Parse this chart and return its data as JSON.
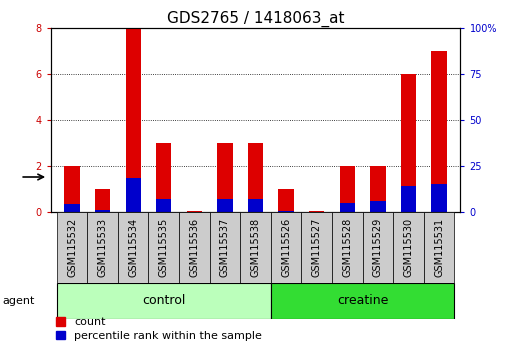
{
  "title": "GDS2765 / 1418063_at",
  "samples": [
    "GSM115532",
    "GSM115533",
    "GSM115534",
    "GSM115535",
    "GSM115536",
    "GSM115537",
    "GSM115538",
    "GSM115526",
    "GSM115527",
    "GSM115528",
    "GSM115529",
    "GSM115530",
    "GSM115531"
  ],
  "count_values": [
    2.0,
    1.0,
    8.0,
    3.0,
    0.05,
    3.0,
    3.0,
    1.0,
    0.05,
    2.0,
    2.0,
    6.0,
    7.0
  ],
  "percentile_values": [
    0.38,
    0.1,
    1.5,
    0.6,
    0.02,
    0.58,
    0.58,
    0.05,
    0.02,
    0.4,
    0.5,
    1.15,
    1.25
  ],
  "ylim_left": [
    0,
    8
  ],
  "ylim_right": [
    0,
    100
  ],
  "yticks_left": [
    0,
    2,
    4,
    6,
    8
  ],
  "ytick_labels_right": [
    "0",
    "25",
    "50",
    "75",
    "100%"
  ],
  "groups": [
    {
      "label": "control",
      "indices": [
        0,
        1,
        2,
        3,
        4,
        5,
        6
      ],
      "color": "#bbffbb"
    },
    {
      "label": "creatine",
      "indices": [
        7,
        8,
        9,
        10,
        11,
        12
      ],
      "color": "#33dd33"
    }
  ],
  "group_row_label": "agent",
  "bar_width": 0.5,
  "red_color": "#dd0000",
  "blue_color": "#0000cc",
  "background_color": "#ffffff",
  "tick_label_bg": "#cccccc",
  "grid_color": "#000000",
  "left_tick_color": "#cc0000",
  "right_tick_color": "#0000cc",
  "title_fontsize": 11,
  "tick_fontsize": 7,
  "label_fontsize": 7,
  "legend_fontsize": 8,
  "group_label_fontsize": 9
}
